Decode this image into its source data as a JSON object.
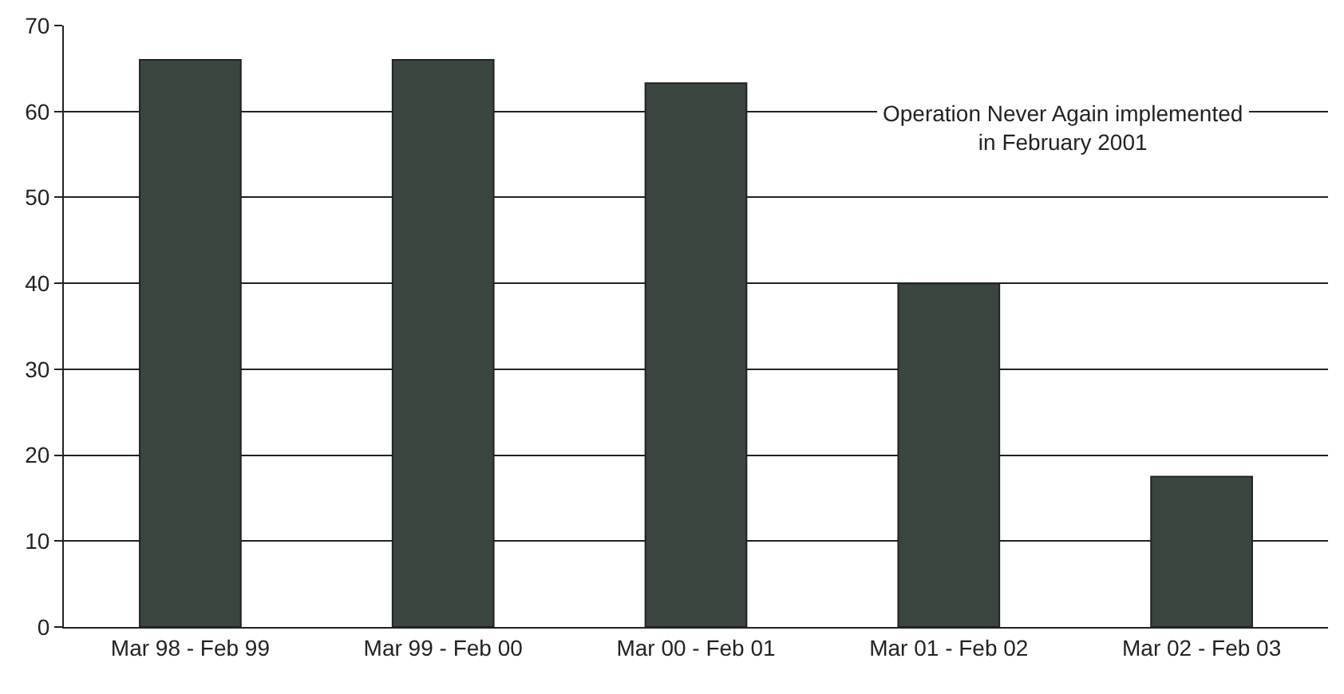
{
  "chart_data": {
    "type": "bar",
    "categories": [
      "Mar 98 - Feb 99",
      "Mar 99 - Feb 00",
      "Mar 00 - Feb 01",
      "Mar 01 - Feb 02",
      "Mar 02 - Feb 03"
    ],
    "values": [
      66,
      66,
      63.3,
      40,
      17.5
    ],
    "color": "#3a453f",
    "ylim": [
      0,
      70
    ],
    "yticks": [
      0,
      10,
      20,
      30,
      40,
      50,
      60,
      70
    ],
    "grid": "y",
    "annotations": [
      "Operation Never Again implemented\nin February 2001"
    ]
  }
}
